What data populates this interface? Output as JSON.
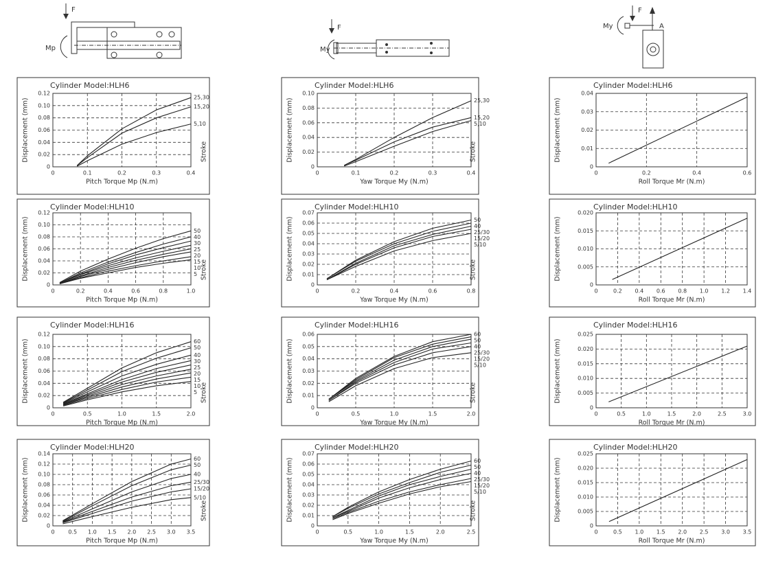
{
  "diagrams": [
    {
      "labels": [
        "F",
        "Mp"
      ]
    },
    {
      "labels": [
        "F",
        "My"
      ]
    },
    {
      "labels": [
        "F",
        "My",
        "A"
      ]
    }
  ],
  "chart_data": [
    {
      "type": "line",
      "title": "Cylinder Model:HLH6",
      "xlabel": "Pitch Torque Mp (N.m)",
      "ylabel": "Displacement (mm)",
      "legend_title": "Stroke",
      "grid": true,
      "color": "#222",
      "xlim": [
        0,
        0.4
      ],
      "xticks": [
        0,
        0.1,
        0.2,
        0.3,
        0.4
      ],
      "ylim": [
        0,
        0.12
      ],
      "yticks": [
        0,
        0.02,
        0.04,
        0.06,
        0.08,
        {
          "value": 0.1,
          "label": "0.10"
        },
        0.12
      ],
      "x": [
        0.07,
        0.1,
        0.2,
        0.3,
        0.4
      ],
      "series": [
        {
          "name": "25,30",
          "values": [
            0.002,
            0.018,
            0.062,
            0.093,
            0.113
          ]
        },
        {
          "name": "15,20",
          "values": [
            0.002,
            0.015,
            0.055,
            0.08,
            0.098
          ]
        },
        {
          "name": "5,10",
          "values": [
            0.001,
            0.01,
            0.037,
            0.056,
            0.07
          ]
        }
      ]
    },
    {
      "type": "line",
      "title": "Cylinder Model:HLH10",
      "xlabel": "Pitch Torque Mp (N.m)",
      "ylabel": "Displacement (mm)",
      "legend_title": "Stroke",
      "grid": true,
      "color": "#222",
      "xlim": [
        0,
        1
      ],
      "xticks": [
        0,
        0.2,
        0.4,
        0.6,
        0.8,
        {
          "value": 1,
          "label": "1.0"
        }
      ],
      "ylim": [
        0,
        0.12
      ],
      "yticks": [
        0,
        0.02,
        0.04,
        0.06,
        0.08,
        {
          "value": 0.1,
          "label": "0.10"
        },
        0.12
      ],
      "x": [
        0.05,
        0.2,
        0.4,
        0.6,
        0.8,
        1
      ],
      "series": [
        {
          "name": "50",
          "values": [
            0.004,
            0.023,
            0.043,
            0.061,
            0.077,
            0.09
          ]
        },
        {
          "name": "40",
          "values": [
            0.003,
            0.02,
            0.038,
            0.054,
            0.068,
            0.08
          ]
        },
        {
          "name": "30",
          "values": [
            0.003,
            0.018,
            0.035,
            0.05,
            0.062,
            0.073
          ]
        },
        {
          "name": "25",
          "values": [
            0.003,
            0.017,
            0.032,
            0.045,
            0.056,
            0.066
          ]
        },
        {
          "name": "20",
          "values": [
            0.002,
            0.015,
            0.029,
            0.041,
            0.051,
            0.06
          ]
        },
        {
          "name": "15",
          "values": [
            0.002,
            0.014,
            0.026,
            0.037,
            0.047,
            0.055
          ]
        },
        {
          "name": "10",
          "values": [
            0.002,
            0.012,
            0.023,
            0.032,
            0.04,
            0.047
          ]
        },
        {
          "name": "5",
          "values": [
            0.002,
            0.011,
            0.02,
            0.029,
            0.036,
            0.042
          ]
        }
      ]
    },
    {
      "type": "line",
      "title": "Cylinder Model:HLH16",
      "xlabel": "Pitch Torque Mp (N.m)",
      "ylabel": "Displacement (mm)",
      "legend_title": "Stroke",
      "grid": true,
      "color": "#222",
      "xlim": [
        0,
        2
      ],
      "xticks": [
        0,
        0.5,
        {
          "value": 1,
          "label": "1.0"
        },
        1.5,
        {
          "value": 2,
          "label": "2.0"
        }
      ],
      "ylim": [
        0,
        0.12
      ],
      "yticks": [
        0,
        0.02,
        0.04,
        0.06,
        0.08,
        {
          "value": 0.1,
          "label": "0.10"
        },
        0.12
      ],
      "x": [
        0.15,
        0.5,
        1,
        1.5,
        2
      ],
      "series": [
        {
          "name": "60",
          "values": [
            0.009,
            0.032,
            0.065,
            0.09,
            0.108
          ]
        },
        {
          "name": "50",
          "values": [
            0.008,
            0.029,
            0.059,
            0.081,
            0.098
          ]
        },
        {
          "name": "40",
          "values": [
            0.007,
            0.026,
            0.052,
            0.071,
            0.086
          ]
        },
        {
          "name": "30",
          "values": [
            0.006,
            0.023,
            0.046,
            0.064,
            0.077
          ]
        },
        {
          "name": "25",
          "values": [
            0.006,
            0.021,
            0.042,
            0.058,
            0.07
          ]
        },
        {
          "name": "20",
          "values": [
            0.005,
            0.019,
            0.038,
            0.052,
            0.063
          ]
        },
        {
          "name": "15",
          "values": [
            0.005,
            0.017,
            0.034,
            0.047,
            0.057
          ]
        },
        {
          "name": "10",
          "values": [
            0.004,
            0.015,
            0.03,
            0.042,
            0.05
          ]
        },
        {
          "name": "5",
          "values": [
            0.003,
            0.013,
            0.026,
            0.036,
            0.043
          ]
        }
      ]
    },
    {
      "type": "line",
      "title": "Cylinder Model:HLH20",
      "xlabel": "Pitch Torque Mp (N.m)",
      "ylabel": "Displacement (mm)",
      "legend_title": "Stroke",
      "grid": true,
      "color": "#222",
      "xlim": [
        0,
        3.5
      ],
      "xticks": [
        0,
        0.5,
        {
          "value": 1,
          "label": "1.0"
        },
        1.5,
        {
          "value": 2,
          "label": "2.0"
        },
        2.5,
        {
          "value": 3,
          "label": "3.0"
        },
        3.5
      ],
      "ylim": [
        0,
        0.14
      ],
      "yticks": [
        0,
        0.02,
        0.04,
        0.06,
        0.08,
        {
          "value": 0.1,
          "label": "0.10"
        },
        0.12,
        0.14
      ],
      "x": [
        0.25,
        1,
        2,
        3,
        3.5
      ],
      "series": [
        {
          "name": "60",
          "values": [
            0.01,
            0.043,
            0.086,
            0.12,
            0.13
          ]
        },
        {
          "name": "50",
          "values": [
            0.009,
            0.039,
            0.078,
            0.109,
            0.118
          ]
        },
        {
          "name": "40",
          "values": [
            0.008,
            0.033,
            0.066,
            0.092,
            0.1
          ]
        },
        {
          "name": "25/30",
          "values": [
            0.007,
            0.028,
            0.056,
            0.078,
            0.085
          ]
        },
        {
          "name": "15/20",
          "values": [
            0.006,
            0.024,
            0.048,
            0.066,
            0.072
          ]
        },
        {
          "name": "5/10",
          "values": [
            0.004,
            0.018,
            0.036,
            0.051,
            0.055
          ]
        }
      ]
    },
    {
      "type": "line",
      "title": "Cylinder Model:HLH6",
      "xlabel": "Yaw Torque My (N.m)",
      "ylabel": "Displacement (mm)",
      "legend_title": "Stroke",
      "grid": true,
      "color": "#222",
      "xlim": [
        0,
        0.4
      ],
      "xticks": [
        0,
        0.1,
        0.2,
        0.3,
        0.4
      ],
      "ylim": [
        0,
        0.1
      ],
      "yticks": [
        0,
        0.02,
        0.04,
        0.06,
        0.08,
        {
          "value": 0.1,
          "label": "0.10"
        }
      ],
      "x": [
        0.07,
        0.1,
        0.2,
        0.3,
        0.4
      ],
      "series": [
        {
          "name": "25,30",
          "values": [
            0.002,
            0.01,
            0.04,
            0.067,
            0.09
          ]
        },
        {
          "name": "15,20",
          "values": [
            0.002,
            0.009,
            0.034,
            0.054,
            0.067
          ]
        },
        {
          "name": "5,10",
          "values": [
            0.001,
            0.007,
            0.028,
            0.048,
            0.063
          ]
        }
      ]
    },
    {
      "type": "line",
      "title": "Cylinder Model:HLH10",
      "xlabel": "Yaw Torque My (N.m)",
      "ylabel": "Displacement (mm)",
      "legend_title": "Stroke",
      "grid": true,
      "color": "#222",
      "xlim": [
        0,
        0.8
      ],
      "xticks": [
        0,
        0.2,
        0.4,
        0.6,
        0.8
      ],
      "ylim": [
        0,
        0.07
      ],
      "yticks": [
        0,
        0.01,
        0.02,
        0.03,
        0.04,
        0.05,
        0.06,
        0.07
      ],
      "x": [
        0.05,
        0.2,
        0.4,
        0.6,
        0.8
      ],
      "series": [
        {
          "name": "50",
          "values": [
            0.006,
            0.024,
            0.042,
            0.055,
            0.063
          ]
        },
        {
          "name": "40",
          "values": [
            0.006,
            0.023,
            0.04,
            0.052,
            0.06
          ]
        },
        {
          "name": "25/30",
          "values": [
            0.005,
            0.021,
            0.038,
            0.049,
            0.057
          ]
        },
        {
          "name": "15/20",
          "values": [
            0.005,
            0.02,
            0.036,
            0.047,
            0.054
          ]
        },
        {
          "name": "5/10",
          "values": [
            0.005,
            0.018,
            0.033,
            0.043,
            0.05
          ]
        }
      ]
    },
    {
      "type": "line",
      "title": "Cylinder Model:HLH16",
      "xlabel": "Yaw Torque My (N.m)",
      "ylabel": "Displacement (mm)",
      "legend_title": "Stroke",
      "grid": true,
      "color": "#222",
      "xlim": [
        0,
        2
      ],
      "xticks": [
        0,
        0.5,
        {
          "value": 1,
          "label": "1.0"
        },
        1.5,
        {
          "value": 2,
          "label": "2.0"
        }
      ],
      "ylim": [
        0,
        0.06
      ],
      "yticks": [
        0,
        0.01,
        0.02,
        0.03,
        0.04,
        0.05,
        0.06
      ],
      "x": [
        0.15,
        0.5,
        1,
        1.5,
        2
      ],
      "series": [
        {
          "name": "60",
          "values": [
            0.007,
            0.024,
            0.042,
            0.054,
            0.06
          ]
        },
        {
          "name": "50",
          "values": [
            0.007,
            0.023,
            0.041,
            0.052,
            0.058
          ]
        },
        {
          "name": "40",
          "values": [
            0.007,
            0.022,
            0.039,
            0.05,
            0.056
          ]
        },
        {
          "name": "25/30",
          "values": [
            0.006,
            0.021,
            0.037,
            0.048,
            0.053
          ]
        },
        {
          "name": "15/20",
          "values": [
            0.006,
            0.02,
            0.035,
            0.045,
            0.05
          ]
        },
        {
          "name": "5/10",
          "values": [
            0.005,
            0.018,
            0.032,
            0.041,
            0.045
          ]
        }
      ]
    },
    {
      "type": "line",
      "title": "Cylinder Model:HLH20",
      "xlabel": "Yaw Torque My (N.m)",
      "ylabel": "Displacement (mm)",
      "legend_title": "Stroke",
      "grid": true,
      "color": "#222",
      "xlim": [
        0,
        2.5
      ],
      "xticks": [
        0,
        0.5,
        {
          "value": 1,
          "label": "1.0"
        },
        1.5,
        {
          "value": 2,
          "label": "2.0"
        },
        2.5
      ],
      "ylim": [
        0,
        0.07
      ],
      "yticks": [
        0,
        0.01,
        0.02,
        0.03,
        0.04,
        0.05,
        0.06,
        0.07
      ],
      "x": [
        0.25,
        0.5,
        1,
        1.5,
        2,
        2.5
      ],
      "series": [
        {
          "name": "60",
          "values": [
            0.009,
            0.018,
            0.033,
            0.045,
            0.055,
            0.063
          ]
        },
        {
          "name": "50",
          "values": [
            0.009,
            0.017,
            0.031,
            0.042,
            0.052,
            0.059
          ]
        },
        {
          "name": "40",
          "values": [
            0.008,
            0.015,
            0.029,
            0.04,
            0.048,
            0.055
          ]
        },
        {
          "name": "25/30",
          "values": [
            0.008,
            0.014,
            0.027,
            0.037,
            0.045,
            0.051
          ]
        },
        {
          "name": "15/20",
          "values": [
            0.007,
            0.013,
            0.024,
            0.033,
            0.04,
            0.046
          ]
        },
        {
          "name": "5/10",
          "values": [
            0.006,
            0.012,
            0.022,
            0.031,
            0.038,
            0.043
          ]
        }
      ]
    },
    {
      "type": "line",
      "title": "Cylinder Model:HLH6",
      "xlabel": "Roll Torque Mr (N.m)",
      "ylabel": "Displacement (mm)",
      "grid": true,
      "color": "#222",
      "xlim": [
        0,
        0.6
      ],
      "xticks": [
        0,
        0.2,
        0.4,
        0.6
      ],
      "ylim": [
        0,
        0.04
      ],
      "yticks": [
        0,
        0.01,
        0.02,
        0.03,
        0.04
      ],
      "x": [
        0.05,
        0.6
      ],
      "series": [
        {
          "values": [
            0.002,
            0.038
          ]
        }
      ]
    },
    {
      "type": "line",
      "title": "Cylinder Model:HLH10",
      "xlabel": "Roll Torque Mr (N.m)",
      "ylabel": "Displacement (mm)",
      "grid": true,
      "color": "#222",
      "xlim": [
        0,
        1.4
      ],
      "xticks": [
        0,
        0.2,
        0.4,
        0.6,
        0.8,
        {
          "value": 1,
          "label": "1.0"
        },
        1.2,
        1.4
      ],
      "ylim": [
        0,
        0.02
      ],
      "yticks": [
        0,
        0.005,
        {
          "value": 0.01,
          "label": "0.010"
        },
        0.015,
        {
          "value": 0.02,
          "label": "0.020"
        }
      ],
      "x": [
        0.15,
        1.4
      ],
      "series": [
        {
          "values": [
            0.0015,
            0.0185
          ]
        }
      ]
    },
    {
      "type": "line",
      "title": "Cylinder Model:HLH16",
      "xlabel": "Roll Torque Mr (N.m)",
      "ylabel": "Displacement (mm)",
      "grid": true,
      "color": "#222",
      "xlim": [
        0,
        3
      ],
      "xticks": [
        0,
        0.5,
        {
          "value": 1,
          "label": "1.0"
        },
        1.5,
        {
          "value": 2,
          "label": "2.0"
        },
        2.5,
        {
          "value": 3,
          "label": "3.0"
        }
      ],
      "ylim": [
        0,
        0.025
      ],
      "yticks": [
        0,
        0.005,
        {
          "value": 0.01,
          "label": "0.010"
        },
        0.015,
        {
          "value": 0.02,
          "label": "0.020"
        },
        0.025
      ],
      "x": [
        0.25,
        3
      ],
      "series": [
        {
          "values": [
            0.002,
            0.021
          ]
        }
      ]
    },
    {
      "type": "line",
      "title": "Cylinder Model:HLH20",
      "xlabel": "Roll Torque Mr (N.m)",
      "ylabel": "Displacement (mm)",
      "grid": true,
      "color": "#222",
      "xlim": [
        0,
        3.5
      ],
      "xticks": [
        0,
        0.5,
        {
          "value": 1,
          "label": "1.0"
        },
        1.5,
        {
          "value": 2,
          "label": "2.0"
        },
        2.5,
        {
          "value": 3,
          "label": "3.0"
        },
        3.5
      ],
      "ylim": [
        0,
        0.025
      ],
      "yticks": [
        0,
        0.005,
        {
          "value": 0.01,
          "label": "0.010"
        },
        0.015,
        {
          "value": 0.02,
          "label": "0.020"
        },
        0.025
      ],
      "x": [
        0.3,
        3.5
      ],
      "series": [
        {
          "values": [
            0.0015,
            0.023
          ]
        }
      ]
    }
  ]
}
